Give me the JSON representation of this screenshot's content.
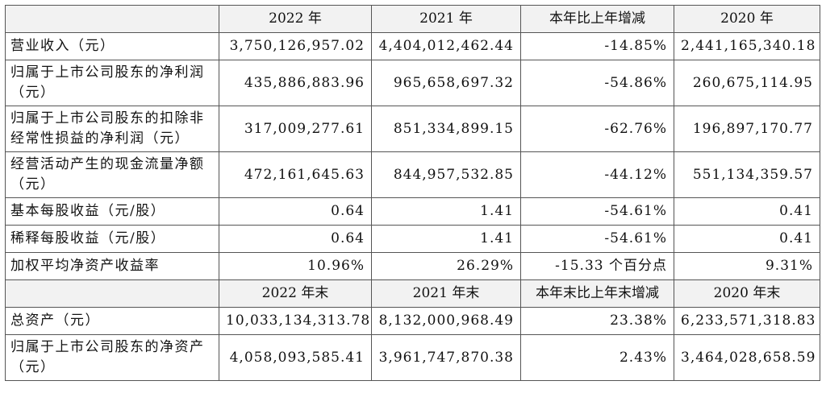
{
  "table": {
    "header1": [
      "2022 年",
      "2021 年",
      "本年比上年增减",
      "2020 年"
    ],
    "rows1": [
      [
        "营业收入（元）",
        "3,750,126,957.02",
        "4,404,012,462.44",
        "-14.85%",
        "2,441,165,340.18"
      ],
      [
        "归属于上市公司股东的净利润（元）",
        "435,886,883.96",
        "965,658,697.32",
        "-54.86%",
        "260,675,114.95"
      ],
      [
        "归属于上市公司股东的扣除非经常性损益的净利润（元）",
        "317,009,277.61",
        "851,334,899.15",
        "-62.76%",
        "196,897,170.77"
      ],
      [
        "经营活动产生的现金流量净额（元）",
        "472,161,645.63",
        "844,957,532.85",
        "-44.12%",
        "551,134,359.57"
      ],
      [
        "基本每股收益（元/股）",
        "0.64",
        "1.41",
        "-54.61%",
        "0.41"
      ],
      [
        "稀释每股收益（元/股）",
        "0.64",
        "1.41",
        "-54.61%",
        "0.41"
      ],
      [
        "加权平均净资产收益率",
        "10.96%",
        "26.29%",
        "-15.33 个百分点",
        "9.31%"
      ]
    ],
    "header2": [
      "2022 年末",
      "2021 年末",
      "本年末比上年末增减",
      "2020 年末"
    ],
    "rows2": [
      [
        "总资产（元）",
        "10,033,134,313.78",
        "8,132,000,968.49",
        "23.38%",
        "6,233,571,318.83"
      ],
      [
        "归属于上市公司股东的净资产（元）",
        "4,058,093,585.41",
        "3,961,747,870.38",
        "2.43%",
        "3,464,028,658.59"
      ]
    ]
  }
}
